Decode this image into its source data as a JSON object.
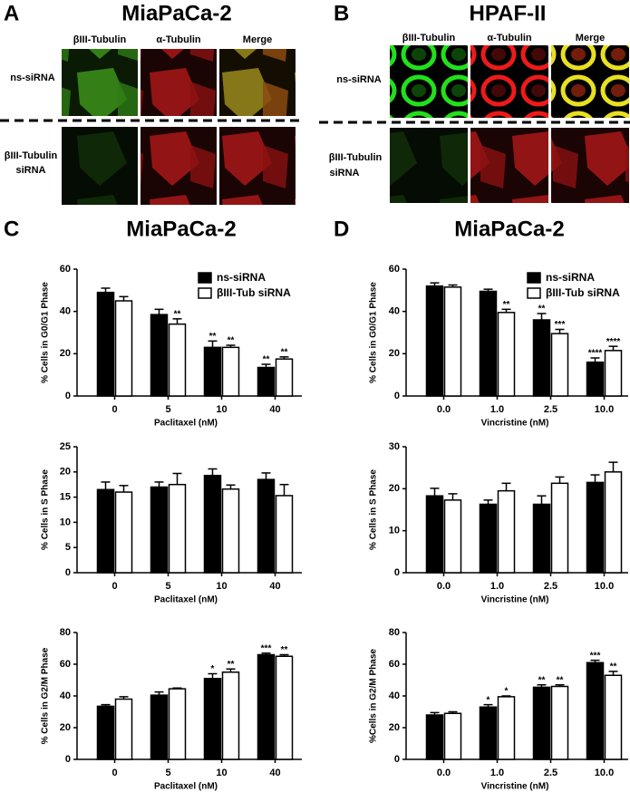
{
  "figure": {
    "panels": [
      {
        "letter": "A",
        "title": "MiaPaCa-2",
        "columns": [
          "βIII-Tubulin",
          "α-Tubulin",
          "Merge"
        ],
        "rows": [
          [
            "ns-siRNA"
          ],
          [
            "βIII-Tubulin",
            "siRNA"
          ]
        ]
      },
      {
        "letter": "B",
        "title": "HPAF-II",
        "columns": [
          "βIII-Tubulin",
          "α-Tubulin",
          "Merge"
        ],
        "rows": [
          [
            "ns-siRNA"
          ],
          [
            "βIII-Tubulin",
            "siRNA"
          ]
        ]
      },
      {
        "letter": "C",
        "title": "MiaPaCa-2"
      },
      {
        "letter": "D",
        "title": "MiaPaCa-2"
      }
    ]
  },
  "chart_data": [
    {
      "type": "bar",
      "categories": [
        "0",
        "5",
        "10",
        "40"
      ],
      "xlabel": "Paclitaxel (nM)",
      "ylabel": "% Cells in G0/G1 Phase",
      "ylim": [
        0,
        60
      ],
      "yticks": [
        0,
        20,
        40,
        60
      ],
      "legend": "upper right",
      "edgecolor": "#000000",
      "series": [
        {
          "name": "ns-siRNA",
          "color": "#000000",
          "values": [
            49,
            38.5,
            23,
            13.5
          ],
          "errors": [
            2,
            2.5,
            3,
            1.5
          ],
          "annotations": [
            null,
            null,
            "**",
            "**"
          ]
        },
        {
          "name": "βIII-Tub siRNA",
          "color": "#ffffff",
          "values": [
            45,
            34,
            23,
            17.5
          ],
          "errors": [
            2,
            2.5,
            1,
            1
          ],
          "annotations": [
            null,
            "**",
            "**",
            "**"
          ]
        }
      ]
    },
    {
      "type": "bar",
      "categories": [
        "0",
        "5",
        "10",
        "40"
      ],
      "xlabel": "Paclitaxel (nM)",
      "ylabel": "% Cells in S Phase",
      "ylim": [
        0,
        25
      ],
      "yticks": [
        0,
        5,
        10,
        15,
        20,
        25
      ],
      "edgecolor": "#000000",
      "series": [
        {
          "color": "#000000",
          "values": [
            16.5,
            17,
            19.3,
            18.5
          ],
          "errors": [
            1.5,
            1,
            1.3,
            1.3
          ]
        },
        {
          "color": "#ffffff",
          "values": [
            16,
            17.5,
            16.6,
            15.3
          ],
          "errors": [
            1.3,
            2.2,
            0.8,
            2.2
          ]
        }
      ]
    },
    {
      "type": "bar",
      "categories": [
        "0",
        "5",
        "10",
        "40"
      ],
      "xlabel": "Paclitaxel (nM)",
      "ylabel": "% Cells in G2/M Phase",
      "ylim": [
        0,
        80
      ],
      "yticks": [
        0,
        20,
        40,
        60,
        80
      ],
      "edgecolor": "#000000",
      "series": [
        {
          "color": "#000000",
          "values": [
            33.5,
            40.5,
            51,
            66
          ],
          "errors": [
            1,
            2,
            3,
            1
          ],
          "annotations": [
            null,
            null,
            "*",
            "***"
          ]
        },
        {
          "color": "#ffffff",
          "values": [
            38,
            44.5,
            55,
            65
          ],
          "errors": [
            1.5,
            0.5,
            2,
            1
          ],
          "annotations": [
            null,
            null,
            "**",
            "**"
          ]
        }
      ]
    },
    {
      "type": "bar",
      "categories": [
        "0.0",
        "1.0",
        "2.5",
        "10.0"
      ],
      "xlabel": "Vincristine (nM)",
      "ylabel": "% Cells in G0/G1 Phase",
      "ylim": [
        0,
        60
      ],
      "yticks": [
        0,
        20,
        40,
        60
      ],
      "legend": "upper right",
      "edgecolor": "#000000",
      "series": [
        {
          "name": "ns-siRNA",
          "color": "#000000",
          "values": [
            52,
            49.5,
            36,
            16
          ],
          "errors": [
            1.5,
            1,
            3,
            2
          ],
          "annotations": [
            null,
            null,
            "**",
            "****"
          ]
        },
        {
          "name": "βIII-Tub siRNA",
          "color": "#ffffff",
          "values": [
            51.5,
            39.5,
            29.5,
            21.5
          ],
          "errors": [
            1,
            1.5,
            2,
            2
          ],
          "annotations": [
            null,
            "**",
            "***",
            "****"
          ]
        }
      ]
    },
    {
      "type": "bar",
      "categories": [
        "0.0",
        "1.0",
        "2.5",
        "10.0"
      ],
      "xlabel": "Vincristine (nM)",
      "ylabel": "% Cells in S Phase",
      "ylim": [
        0,
        30
      ],
      "yticks": [
        0,
        10,
        20,
        30
      ],
      "edgecolor": "#000000",
      "series": [
        {
          "color": "#000000",
          "values": [
            18.3,
            16.3,
            16.3,
            21.5
          ],
          "errors": [
            1.8,
            1,
            2,
            1.8
          ]
        },
        {
          "color": "#ffffff",
          "values": [
            17.3,
            19.5,
            21.3,
            24
          ],
          "errors": [
            1.5,
            1.8,
            1.5,
            2.3
          ]
        }
      ]
    },
    {
      "type": "bar",
      "categories": [
        "0.0",
        "1.0",
        "2.5",
        "10.0"
      ],
      "xlabel": "Vincristine (nM)",
      "ylabel": "%Cells in G2/M Phase",
      "ylim": [
        0,
        80
      ],
      "yticks": [
        0,
        20,
        40,
        60,
        80
      ],
      "edgecolor": "#000000",
      "series": [
        {
          "color": "#000000",
          "values": [
            28,
            33,
            45.5,
            61
          ],
          "errors": [
            1.5,
            1.5,
            1.5,
            1.5
          ],
          "annotations": [
            null,
            "*",
            "**",
            "***"
          ]
        },
        {
          "color": "#ffffff",
          "values": [
            29,
            39.5,
            46,
            53
          ],
          "errors": [
            1,
            0.5,
            1,
            2.5
          ],
          "annotations": [
            null,
            "*",
            "**",
            "**"
          ]
        }
      ]
    }
  ]
}
